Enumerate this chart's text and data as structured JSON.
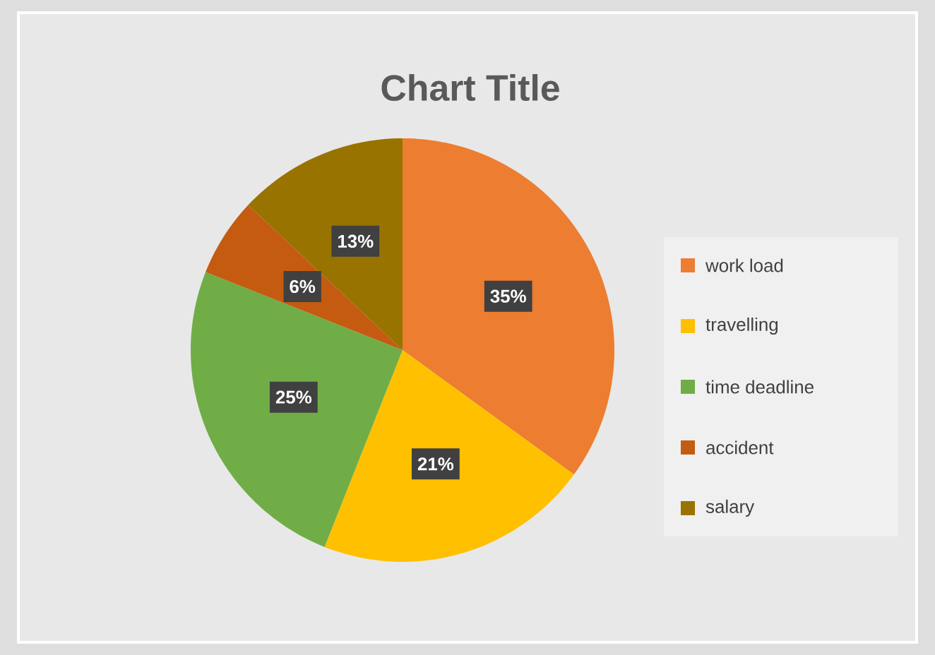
{
  "chart_data": {
    "type": "pie",
    "title": "Chart Title",
    "categories": [
      "work load",
      "travelling",
      "time deadline",
      "accident",
      "salary"
    ],
    "values": [
      35,
      21,
      25,
      6,
      13
    ],
    "value_labels": [
      "35%",
      "21%",
      "25%",
      "6%",
      "13%"
    ],
    "colors": [
      "#ed7d31",
      "#ffc000",
      "#70ad47",
      "#c55a11",
      "#997300"
    ],
    "legend": "right"
  }
}
